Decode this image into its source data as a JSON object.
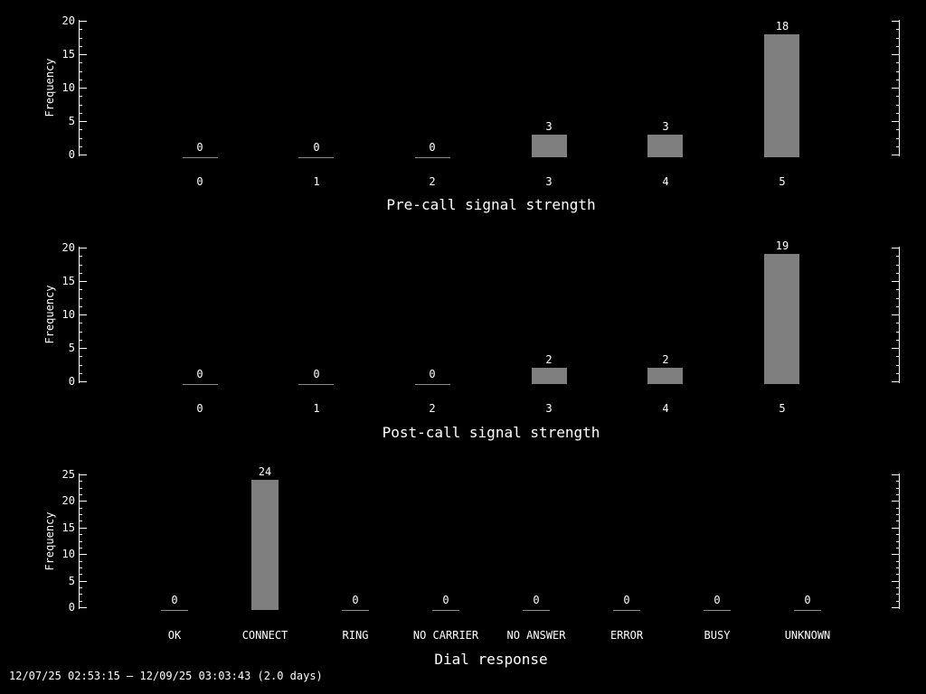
{
  "colors": {
    "background": "#000000",
    "text": "#ffffff",
    "axis": "#ffffff",
    "bar_fill": "#7f7f7f",
    "zero_bar_line": "#8c8c8c"
  },
  "footer": {
    "date_range": "12/07/25 02:53:15 – 12/09/25 03:03:43 (2.0 days)"
  },
  "chart_data": [
    {
      "type": "bar",
      "title": "",
      "xlabel": "Pre-call signal strength",
      "ylabel": "Frequency",
      "categories": [
        "0",
        "1",
        "2",
        "3",
        "4",
        "5"
      ],
      "values": [
        0,
        0,
        0,
        3,
        3,
        18
      ],
      "ylim": [
        0,
        20
      ],
      "yticks": [
        0,
        5,
        10,
        15,
        20
      ],
      "minor_ticks_per_major": 4,
      "grid": false,
      "legend": null,
      "value_labels_shown": true,
      "bar_color": "#7f7f7f"
    },
    {
      "type": "bar",
      "title": "",
      "xlabel": "Post-call signal strength",
      "ylabel": "Frequency",
      "categories": [
        "0",
        "1",
        "2",
        "3",
        "4",
        "5"
      ],
      "values": [
        0,
        0,
        0,
        2,
        2,
        19
      ],
      "ylim": [
        0,
        20
      ],
      "yticks": [
        0,
        5,
        10,
        15,
        20
      ],
      "minor_ticks_per_major": 4,
      "grid": false,
      "legend": null,
      "value_labels_shown": true,
      "bar_color": "#7f7f7f"
    },
    {
      "type": "bar",
      "title": "",
      "xlabel": "Dial response",
      "ylabel": "Frequency",
      "categories": [
        "OK",
        "CONNECT",
        "RING",
        "NO CARRIER",
        "NO ANSWER",
        "ERROR",
        "BUSY",
        "UNKNOWN"
      ],
      "values": [
        0,
        24,
        0,
        0,
        0,
        0,
        0,
        0
      ],
      "ylim": [
        0,
        25
      ],
      "yticks": [
        0,
        5,
        10,
        15,
        20,
        25
      ],
      "minor_ticks_per_major": 4,
      "grid": false,
      "legend": null,
      "value_labels_shown": true,
      "bar_color": "#7f7f7f"
    }
  ]
}
